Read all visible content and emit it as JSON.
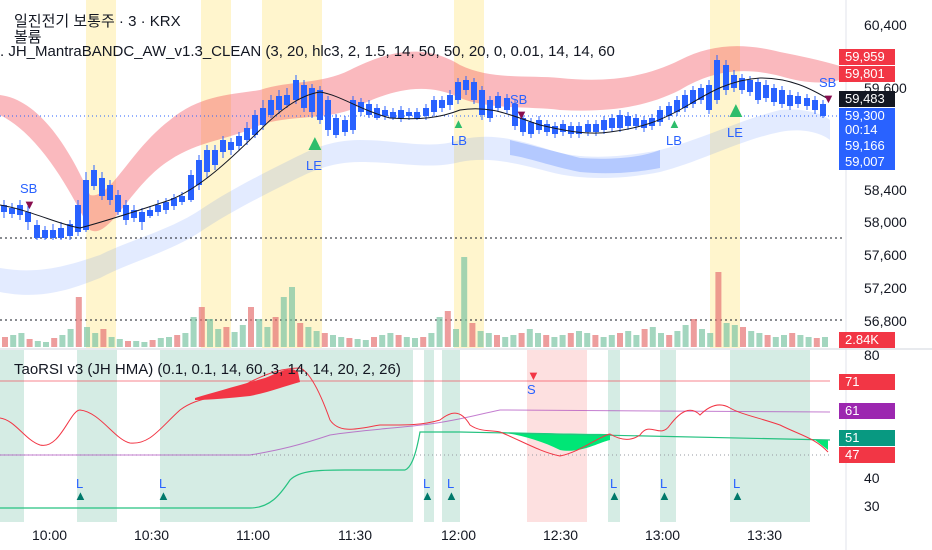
{
  "header": {
    "title": "일진전기 보통주 · 3 · KRX",
    "volume_label": "볼륨",
    "indicator_label": ". JH_MantraBANDC_AW_v1.3_CLEAN (3, 20, hlc3, 2, 1.5, 14, 50, 50, 20, 0, 0.01, 14, 14, 60"
  },
  "rsi_panel": {
    "title": "TaoRSI v3 (JH HMA) (0.1, 0.1, 14, 60, 3, 14, 14, 20, 2, 26)"
  },
  "price_axis": [
    "60,400",
    "59,600",
    "58,400",
    "58,000",
    "57,600",
    "57,200",
    "56,800"
  ],
  "price_tags": [
    {
      "text": "59,959",
      "color": "#f23645"
    },
    {
      "text": "59,801",
      "color": "#f23645"
    },
    {
      "text": "59,483",
      "color": "#131722"
    },
    {
      "text": "59,300",
      "color": "#2962ff"
    },
    {
      "text": "00:14",
      "color": "#2962ff"
    },
    {
      "text": "59,166",
      "color": "#2962ff"
    },
    {
      "text": "59,007",
      "color": "#2962ff"
    }
  ],
  "volume_tag": {
    "text": "2.84K",
    "color": "#f23645"
  },
  "rsi_axis": [
    "80",
    "40",
    "30"
  ],
  "rsi_tags": [
    {
      "text": "71",
      "color": "#f23645"
    },
    {
      "text": "61",
      "color": "#9c27b0"
    },
    {
      "text": "51",
      "color": "#089981"
    },
    {
      "text": "47",
      "color": "#f23645"
    }
  ],
  "time_axis": [
    "10:00",
    "10:30",
    "11:00",
    "11:30",
    "12:00",
    "12:30",
    "13:00",
    "13:30"
  ],
  "signals": {
    "sb": "SB",
    "le": "LE",
    "lb": "LB",
    "l": "L",
    "s": "S"
  },
  "colors": {
    "up": "#f23645",
    "down": "#2962ff",
    "upper_band": "#f23645",
    "lower_band": "#2962ff",
    "highlight": "#fff3c4",
    "rsi_zone": "#d5ece4",
    "rsi_short_zone": "#fde0e0"
  }
}
